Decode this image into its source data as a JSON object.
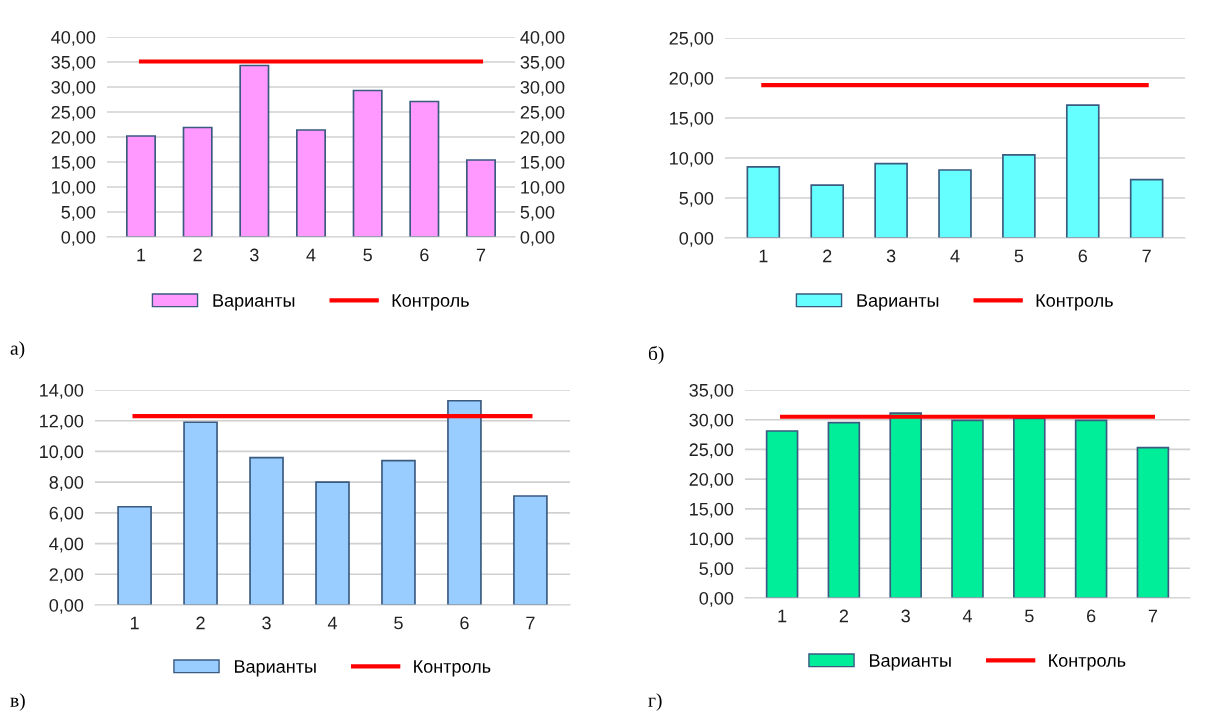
{
  "chart_data": [
    {
      "type": "bar",
      "categories": [
        "1",
        "2",
        "3",
        "4",
        "5",
        "6",
        "7"
      ],
      "legend": "bottom",
      "grid": "y",
      "annotations": [
        "а)"
      ],
      "ylim": [
        0,
        40
      ],
      "yticks": [
        {
          "value": 0,
          "label": "0,00"
        },
        {
          "value": 5,
          "label": "5,00"
        },
        {
          "value": 10,
          "label": "10,00"
        },
        {
          "value": 15,
          "label": "15,00"
        },
        {
          "value": 20,
          "label": "20,00"
        },
        {
          "value": 25,
          "label": "25,00"
        },
        {
          "value": 30,
          "label": "30,00"
        },
        {
          "value": 35,
          "label": "35,00"
        },
        {
          "value": 40,
          "label": "40,00"
        }
      ],
      "y2lim": [
        0,
        40
      ],
      "y2ticks": [
        {
          "value": 0,
          "label": "0,00"
        },
        {
          "value": 5,
          "label": "5,00"
        },
        {
          "value": 10,
          "label": "10,00"
        },
        {
          "value": 15,
          "label": "15,00"
        },
        {
          "value": 20,
          "label": "20,00"
        },
        {
          "value": 25,
          "label": "25,00"
        },
        {
          "value": 30,
          "label": "30,00"
        },
        {
          "value": 35,
          "label": "35,00"
        },
        {
          "value": 40,
          "label": "40,00"
        }
      ],
      "series": [
        {
          "name": "Варианты",
          "color": "#ff99ff",
          "values": [
            20.2,
            21.9,
            34.3,
            21.4,
            29.3,
            27.1,
            15.4
          ]
        },
        {
          "name": "Контроль",
          "type": "line",
          "axis": "y2",
          "color": "#ff0000",
          "values": [
            35.1,
            35.1,
            35.1,
            35.1,
            35.1,
            35.1,
            35.1
          ]
        }
      ]
    },
    {
      "type": "bar",
      "categories": [
        "1",
        "2",
        "3",
        "4",
        "5",
        "6",
        "7"
      ],
      "legend": "bottom",
      "grid": "y",
      "annotations": [
        "б)"
      ],
      "ylim": [
        0,
        25
      ],
      "yticks": [
        {
          "value": 0,
          "label": "0,00"
        },
        {
          "value": 5,
          "label": "5,00"
        },
        {
          "value": 10,
          "label": "10,00"
        },
        {
          "value": 15,
          "label": "15,00"
        },
        {
          "value": 20,
          "label": "20,00"
        },
        {
          "value": 25,
          "label": "25,00"
        }
      ],
      "series": [
        {
          "name": "Варианты",
          "color": "#66ffff",
          "values": [
            8.9,
            6.6,
            9.3,
            8.5,
            10.4,
            16.6,
            7.3
          ]
        },
        {
          "name": "Контроль",
          "type": "line",
          "color": "#ff0000",
          "values": [
            19.1,
            19.1,
            19.1,
            19.1,
            19.1,
            19.1,
            19.1
          ]
        }
      ]
    },
    {
      "type": "bar",
      "categories": [
        "1",
        "2",
        "3",
        "4",
        "5",
        "6",
        "7"
      ],
      "legend": "bottom",
      "grid": "y",
      "annotations": [
        "в)"
      ],
      "ylim": [
        0,
        14
      ],
      "yticks": [
        {
          "value": 0,
          "label": "0,00"
        },
        {
          "value": 2,
          "label": "2,00"
        },
        {
          "value": 4,
          "label": "4,00"
        },
        {
          "value": 6,
          "label": "6,00"
        },
        {
          "value": 8,
          "label": "8,00"
        },
        {
          "value": 10,
          "label": "10,00"
        },
        {
          "value": 12,
          "label": "12,00"
        },
        {
          "value": 14,
          "label": "14,00"
        }
      ],
      "series": [
        {
          "name": "Варианты",
          "color": "#99ccff",
          "values": [
            6.4,
            11.9,
            9.6,
            8.0,
            9.4,
            13.3,
            7.1
          ]
        },
        {
          "name": "Контроль",
          "type": "line",
          "color": "#ff0000",
          "values": [
            12.3,
            12.3,
            12.3,
            12.3,
            12.3,
            12.3,
            12.3
          ]
        }
      ]
    },
    {
      "type": "bar",
      "categories": [
        "1",
        "2",
        "3",
        "4",
        "5",
        "6",
        "7"
      ],
      "legend": "bottom",
      "grid": "y",
      "annotations": [
        "г)"
      ],
      "ylim": [
        0,
        35
      ],
      "yticks": [
        {
          "value": 0,
          "label": "0,00"
        },
        {
          "value": 5,
          "label": "5,00"
        },
        {
          "value": 10,
          "label": "10,00"
        },
        {
          "value": 15,
          "label": "15,00"
        },
        {
          "value": 20,
          "label": "20,00"
        },
        {
          "value": 25,
          "label": "25,00"
        },
        {
          "value": 30,
          "label": "30,00"
        },
        {
          "value": 35,
          "label": "35,00"
        }
      ],
      "series": [
        {
          "name": "Варианты",
          "color": "#00ee99",
          "values": [
            28.1,
            29.5,
            31.1,
            29.9,
            30.2,
            29.9,
            25.3
          ]
        },
        {
          "name": "Контроль",
          "type": "line",
          "color": "#ff0000",
          "values": [
            30.5,
            30.5,
            30.5,
            30.5,
            30.5,
            30.5,
            30.5
          ]
        }
      ]
    }
  ]
}
